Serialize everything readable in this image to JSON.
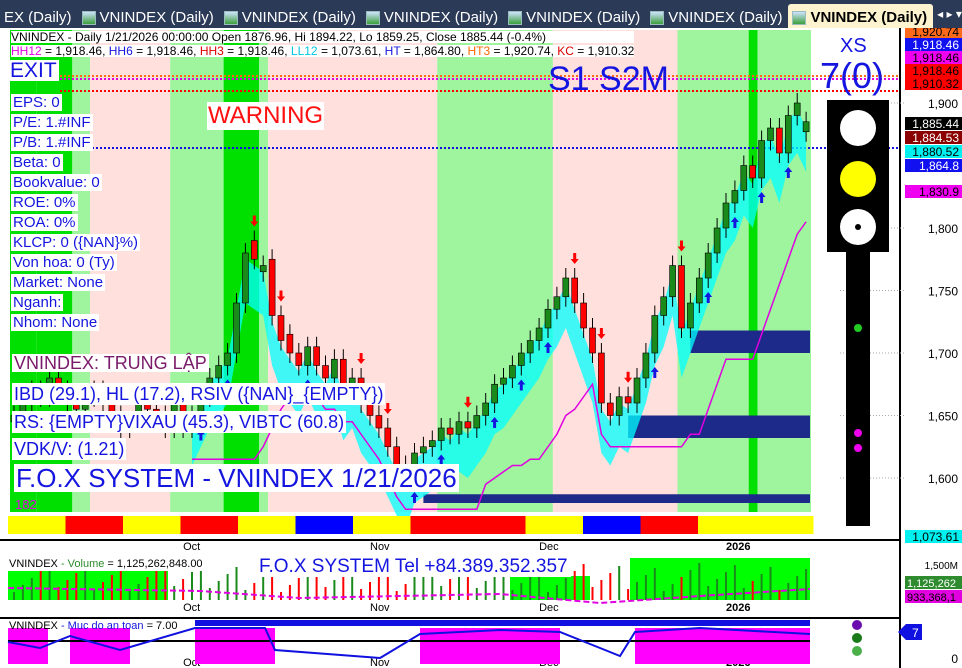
{
  "tabs": [
    {
      "label": "EX (Daily)",
      "icon": false
    },
    {
      "label": "VNINDEX (Daily)",
      "icon": true
    },
    {
      "label": "VNINDEX (Daily)",
      "icon": true
    },
    {
      "label": "VNINDEX (Daily)",
      "icon": true
    },
    {
      "label": "VNINDEX (Daily)",
      "icon": true
    },
    {
      "label": "VNINDEX (Daily)",
      "icon": true
    },
    {
      "label": "VNINDEX (Daily)",
      "icon": true,
      "active": true
    }
  ],
  "tab_nav": "◂ ▸ ▾",
  "header": {
    "line1": "VNINDEX - Daily 1/21/2026 00:00:00 Open 1876.96, Hi 1894.22, Lo 1859.25, Close 1885.44 (-0.4%)",
    "levels": [
      {
        "k": "HH12",
        "v": " = 1,918.46, ",
        "c": "#e000e0"
      },
      {
        "k": "HH6",
        "v": " = 1,918.46, ",
        "c": "#1515e0"
      },
      {
        "k": "HH3",
        "v": " = 1,918.46, ",
        "c": "#e00000"
      },
      {
        "k": "LL12",
        "v": " = 1,073.61, ",
        "c": "#00c8e0"
      },
      {
        "k": "HT",
        "v": "  = 1,864.80, ",
        "c": "#1515e0"
      },
      {
        "k": "HT3",
        "v": "  = 1,920.74, ",
        "c": "#ff6a00"
      },
      {
        "k": "KC",
        "v": " = 1,910.32",
        "c": "#e00000"
      }
    ]
  },
  "overlay": {
    "exit": "EXIT",
    "warning": "WARNING",
    "signals": "S1  S2M",
    "xs": "XS",
    "xs_value": "7(0)",
    "info": [
      "EPS: 0",
      "P/E: 1.#INF",
      "P/B: 1.#INF",
      "Beta: 0",
      "Bookvalue: 0",
      "ROE: 0%",
      "ROA: 0%",
      "KLCP: 0 ({NAN}%)",
      "Von hoa: 0 (Ty)",
      "Market: None",
      "Nganh:",
      "Nhom: None"
    ],
    "status": "VNINDEX: TRUNG LẬP",
    "ibd": "IBD (29.1), HL (17.2), RSIV ({NAN}_{EMPTY})",
    "rs": "RS: {EMPTY}VIXAU (45.3), VIBTC (60.8)",
    "vdk": "VDK/V:  (1.21)",
    "title": "F.O.X SYSTEM - VNINDEX 1/21/2026",
    "count": "182"
  },
  "volume_pane": {
    "label": "VNINDEX",
    "label2": " - Volume",
    "label3": " = 1,125,262,848.00",
    "banner": "F.O.X SYSTEM Tel +84.389.352.357",
    "axis": [
      "1,500M"
    ],
    "badges": [
      {
        "t": "1,125,262",
        "c": "#2e8b2e"
      },
      {
        "t": "933,368,1",
        "c": "#e000e0"
      }
    ]
  },
  "safety_pane": {
    "label": "VNINDEX",
    "label2": " - Muc do an toan",
    "label3": " = 7.00",
    "axis_zero": "0",
    "badge": "7"
  },
  "x_labels": [
    {
      "t": "Oct",
      "i": 19
    },
    {
      "t": "Nov",
      "i": 40
    },
    {
      "t": "Dec",
      "i": 59
    },
    {
      "t": "2026",
      "i": 80
    }
  ],
  "chart_data": {
    "type": "candlestick",
    "ylim": [
      1560,
      1930
    ],
    "y_ticks": [
      1600,
      1650,
      1700,
      1750,
      1800,
      1900
    ],
    "opens": [
      1645,
      1650,
      1660,
      1670,
      1665,
      1680,
      1670,
      1660,
      1655,
      1665,
      1670,
      1660,
      1650,
      1640,
      1645,
      1660,
      1655,
      1650,
      1640,
      1660,
      1640,
      1650,
      1665,
      1680,
      1690,
      1700,
      1740,
      1790,
      1765,
      1775,
      1730,
      1715,
      1700,
      1690,
      1705,
      1690,
      1680,
      1695,
      1670,
      1680,
      1660,
      1650,
      1640,
      1625,
      1610,
      1600,
      1620,
      1625,
      1630,
      1640,
      1635,
      1645,
      1640,
      1650,
      1660,
      1675,
      1680,
      1690,
      1700,
      1710,
      1720,
      1735,
      1745,
      1760,
      1740,
      1720,
      1700,
      1660,
      1650,
      1665,
      1660,
      1680,
      1700,
      1730,
      1745,
      1770,
      1720,
      1740,
      1760,
      1780,
      1800,
      1820,
      1830,
      1850,
      1840,
      1870,
      1880,
      1860,
      1890,
      1877
    ],
    "closes": [
      1650,
      1660,
      1670,
      1665,
      1680,
      1670,
      1660,
      1655,
      1665,
      1670,
      1660,
      1650,
      1640,
      1645,
      1660,
      1655,
      1650,
      1640,
      1660,
      1640,
      1650,
      1665,
      1680,
      1690,
      1700,
      1740,
      1780,
      1775,
      1770,
      1730,
      1710,
      1700,
      1690,
      1705,
      1690,
      1680,
      1695,
      1670,
      1680,
      1660,
      1650,
      1640,
      1625,
      1610,
      1600,
      1620,
      1625,
      1630,
      1640,
      1635,
      1645,
      1640,
      1650,
      1660,
      1675,
      1680,
      1690,
      1700,
      1710,
      1720,
      1735,
      1745,
      1760,
      1740,
      1720,
      1700,
      1660,
      1650,
      1665,
      1660,
      1680,
      1700,
      1730,
      1745,
      1770,
      1720,
      1740,
      1760,
      1780,
      1800,
      1820,
      1830,
      1850,
      1840,
      1870,
      1880,
      1860,
      1890,
      1900,
      1885
    ],
    "last_close": 1885.44,
    "price_badges": [
      {
        "t": "1,920.74",
        "bg": "#ff6a1a",
        "fg": "#000"
      },
      {
        "t": "1,918.46",
        "bg": "#1010f0",
        "fg": "#fff"
      },
      {
        "t": "1,918.46",
        "bg": "#f000f0",
        "fg": "#000"
      },
      {
        "t": "1,918.46",
        "bg": "#ff0000",
        "fg": "#000"
      },
      {
        "t": "1,910.32",
        "bg": "#ff0000",
        "fg": "#000"
      },
      {
        "t": "1,885.44",
        "bg": "#000",
        "fg": "#fff"
      },
      {
        "t": "1,884.53",
        "bg": "#8b0000",
        "fg": "#fff"
      },
      {
        "t": "1,880.52",
        "bg": "#00f0f0",
        "fg": "#000"
      },
      {
        "t": "1,864.8",
        "bg": "#1010f0",
        "fg": "#fff"
      },
      {
        "t": "1,830.9",
        "bg": "#f000f0",
        "fg": "#000"
      },
      {
        "t": "1,073.61",
        "bg": "#00f0f0",
        "fg": "#000"
      }
    ],
    "zones": [
      {
        "from": 0,
        "to": 3,
        "c": "#00e000"
      },
      {
        "from": 3,
        "to": 7,
        "c": "#00e000"
      },
      {
        "from": 7,
        "to": 9,
        "c": "#9ef59e"
      },
      {
        "from": 9,
        "to": 18,
        "c": "#ffe0dc"
      },
      {
        "from": 18,
        "to": 24,
        "c": "#9ef59e"
      },
      {
        "from": 24,
        "to": 28,
        "c": "#00e000"
      },
      {
        "from": 28,
        "to": 29,
        "c": "#9ef59e"
      },
      {
        "from": 29,
        "to": 48,
        "c": "#ffe0dc"
      },
      {
        "from": 48,
        "to": 61,
        "c": "#9ef59e"
      },
      {
        "from": 61,
        "to": 75,
        "c": "#ffe0dc"
      },
      {
        "from": 75,
        "to": 83,
        "c": "#9ef59e"
      },
      {
        "from": 83,
        "to": 84,
        "c": "#00e000"
      },
      {
        "from": 84,
        "to": 90,
        "c": "#9ef59e"
      }
    ],
    "boxes": [
      {
        "from": 76,
        "lo": 1700,
        "hi": 1718
      },
      {
        "from": 69,
        "lo": 1632,
        "hi": 1650
      },
      {
        "from": 46,
        "lo": 1580,
        "hi": 1587
      }
    ]
  }
}
